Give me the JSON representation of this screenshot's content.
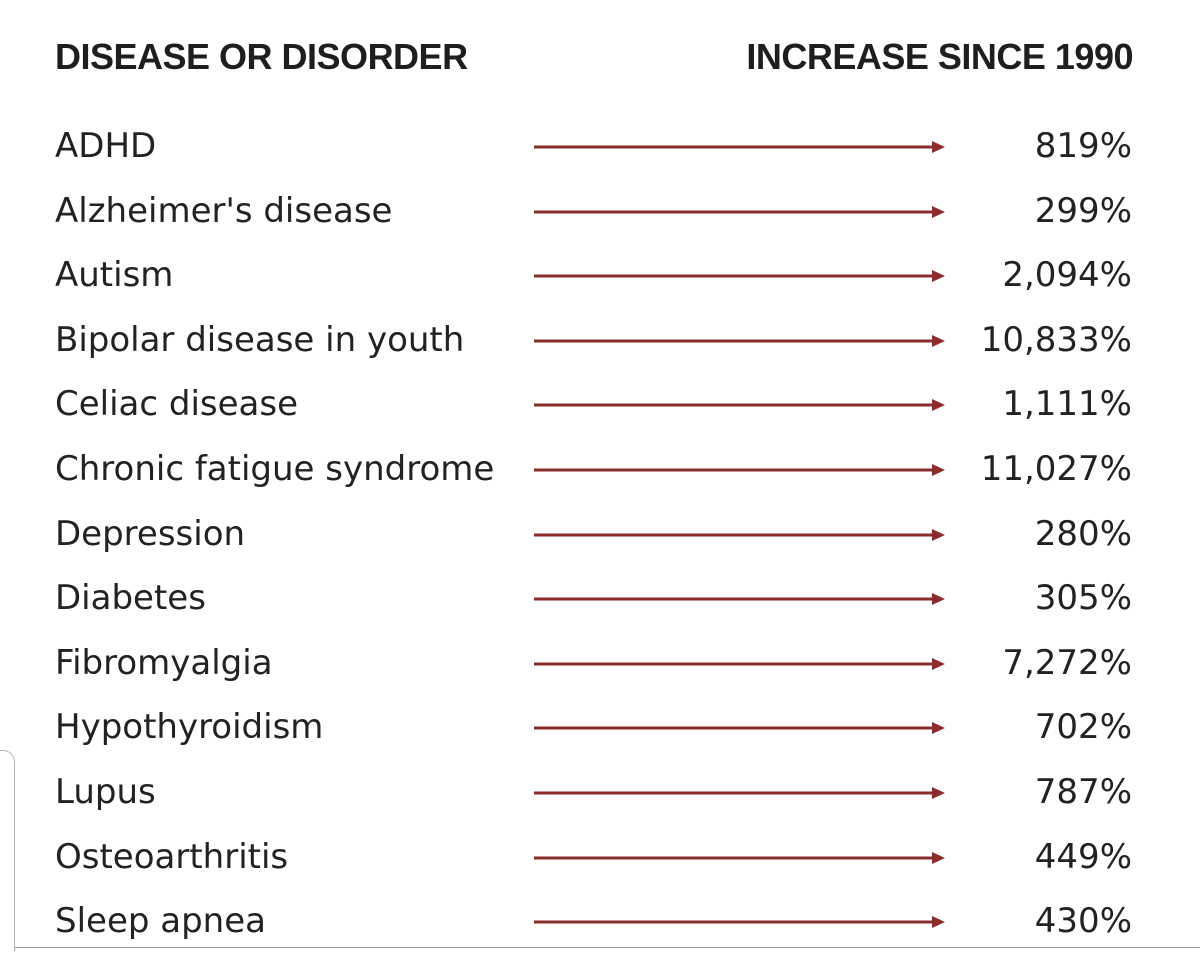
{
  "header": {
    "left": "DISEASE OR DISORDER",
    "right": "INCREASE SINCE 1990"
  },
  "arrow_color": "#8b2b2b",
  "rows": [
    {
      "name": "ADHD",
      "value": "819%"
    },
    {
      "name": "Alzheimer's disease",
      "value": "299%"
    },
    {
      "name": "Autism",
      "value": "2,094%"
    },
    {
      "name": "Bipolar disease in youth",
      "value": "10,833%"
    },
    {
      "name": "Celiac disease",
      "value": "1,111%"
    },
    {
      "name": "Chronic fatigue syndrome",
      "value": "11,027%"
    },
    {
      "name": "Depression",
      "value": "280%"
    },
    {
      "name": "Diabetes",
      "value": "305%"
    },
    {
      "name": "Fibromyalgia",
      "value": "7,272%"
    },
    {
      "name": "Hypothyroidism",
      "value": "702%"
    },
    {
      "name": "Lupus",
      "value": "787%"
    },
    {
      "name": "Osteoarthritis",
      "value": "449%"
    },
    {
      "name": "Sleep apnea",
      "value": "430%"
    }
  ]
}
